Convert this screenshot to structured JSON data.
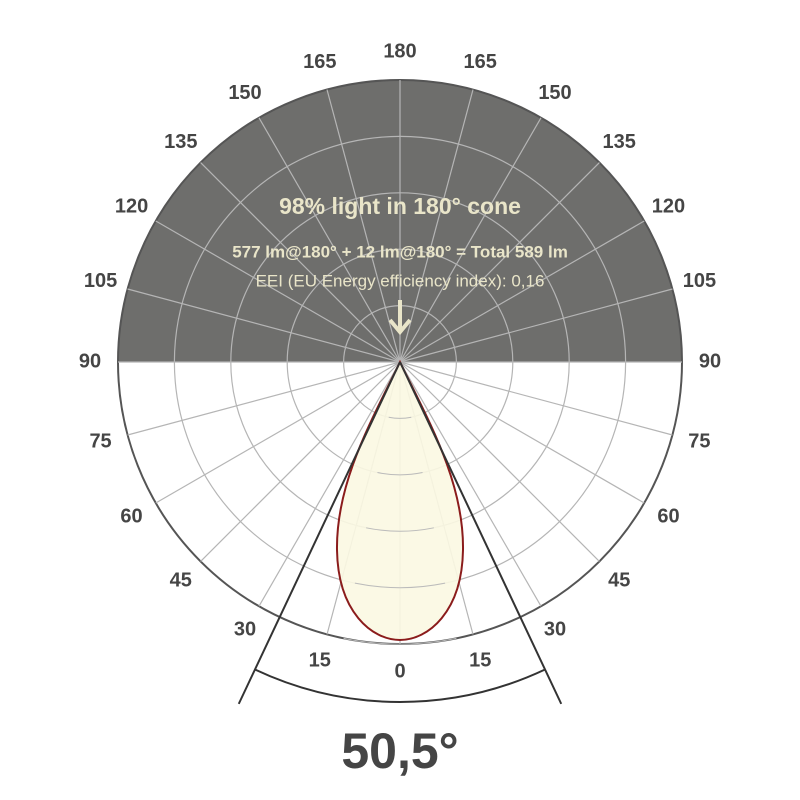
{
  "chart_data": {
    "type": "polar",
    "title": "98% light in 180° cone",
    "subtitle": "577 lm@180° + 12 lm@180° = Total 589 lm",
    "note": "EEI (EU Energy efficiency index): 0,16",
    "angle_ticks": [
      0,
      15,
      30,
      45,
      60,
      75,
      90,
      105,
      120,
      135,
      150,
      165,
      180
    ],
    "beam_angle": {
      "value": 50.5,
      "label": "50,5°"
    }
  }
}
